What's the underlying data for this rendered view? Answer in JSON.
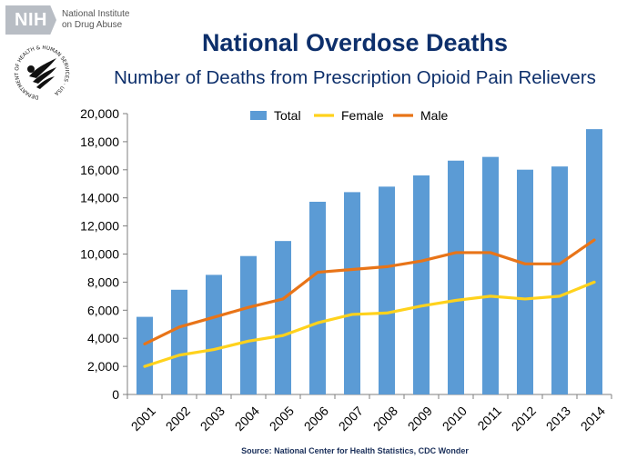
{
  "header": {
    "nih_logo_text": "NIH",
    "nih_line1": "National Institute",
    "nih_line2": "on Drug Abuse",
    "seal_text": "DEPARTMENT OF HEALTH & HUMAN SERVICES · USA"
  },
  "chart_data": {
    "type": "bar",
    "title": "National Overdose Deaths",
    "subtitle": "Number of Deaths from Prescription Opioid Pain Relievers",
    "categories": [
      "2001",
      "2002",
      "2003",
      "2004",
      "2005",
      "2006",
      "2007",
      "2008",
      "2009",
      "2010",
      "2011",
      "2012",
      "2013",
      "2014"
    ],
    "series": [
      {
        "name": "Total",
        "kind": "bar",
        "color": "#5b9bd5",
        "values": [
          5528,
          7456,
          8517,
          9857,
          10928,
          13723,
          14408,
          14800,
          15597,
          16651,
          16917,
          16007,
          16235,
          18893
        ]
      },
      {
        "name": "Female",
        "kind": "line",
        "color": "#ffd21c",
        "values": [
          2000,
          2800,
          3200,
          3800,
          4200,
          5100,
          5700,
          5800,
          6300,
          6700,
          7000,
          6800,
          7000,
          8000
        ]
      },
      {
        "name": "Male",
        "kind": "line",
        "color": "#e87418",
        "values": [
          3600,
          4800,
          5500,
          6200,
          6800,
          8700,
          8900,
          9100,
          9500,
          10100,
          10100,
          9300,
          9300,
          11000
        ]
      }
    ],
    "ylim": [
      0,
      20000
    ],
    "yticks": [
      "0",
      "2,000",
      "4,000",
      "6,000",
      "8,000",
      "10,000",
      "12,000",
      "14,000",
      "16,000",
      "18,000",
      "20,000"
    ],
    "ytick_values": [
      0,
      2000,
      4000,
      6000,
      8000,
      10000,
      12000,
      14000,
      16000,
      18000,
      20000
    ],
    "legend_position": "top-center",
    "xlabel": "",
    "ylabel": "",
    "grid": false
  },
  "source": "Source: National Center for Health Statistics, CDC Wonder"
}
